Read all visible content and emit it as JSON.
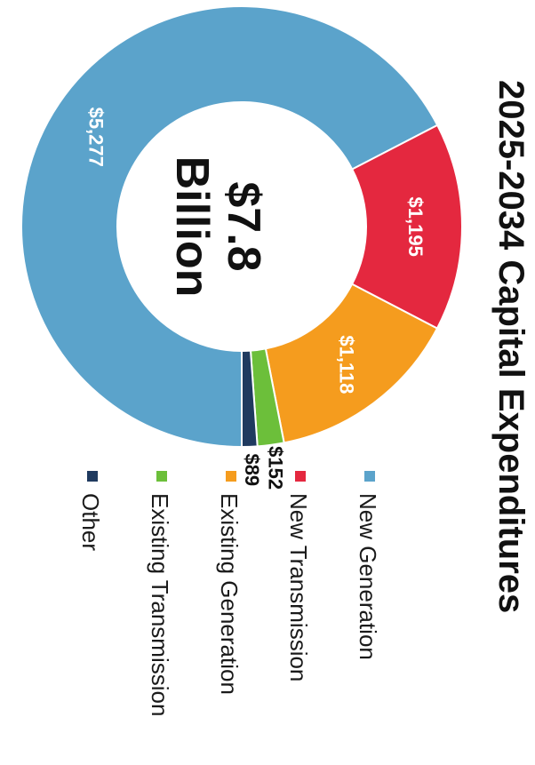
{
  "chart_data": {
    "type": "pie",
    "title": "2025-2034 Capital Expenditures",
    "center_label": [
      "$7.8",
      "Billion"
    ],
    "legend_position": "right",
    "series": [
      {
        "name": "New Generation",
        "value": 5277,
        "label": "$5,277",
        "color": "#5BA3CB"
      },
      {
        "name": "New Transmission",
        "value": 1195,
        "label": "$1,195",
        "color": "#E4283F"
      },
      {
        "name": "Existing Generation",
        "value": 1118,
        "label": "$1,118",
        "color": "#F59C1E"
      },
      {
        "name": "Existing Transmission",
        "value": 152,
        "label": "$152",
        "color": "#6CBF3A"
      },
      {
        "name": "Other",
        "value": 89,
        "label": "$89",
        "color": "#1F3A5F"
      }
    ]
  }
}
